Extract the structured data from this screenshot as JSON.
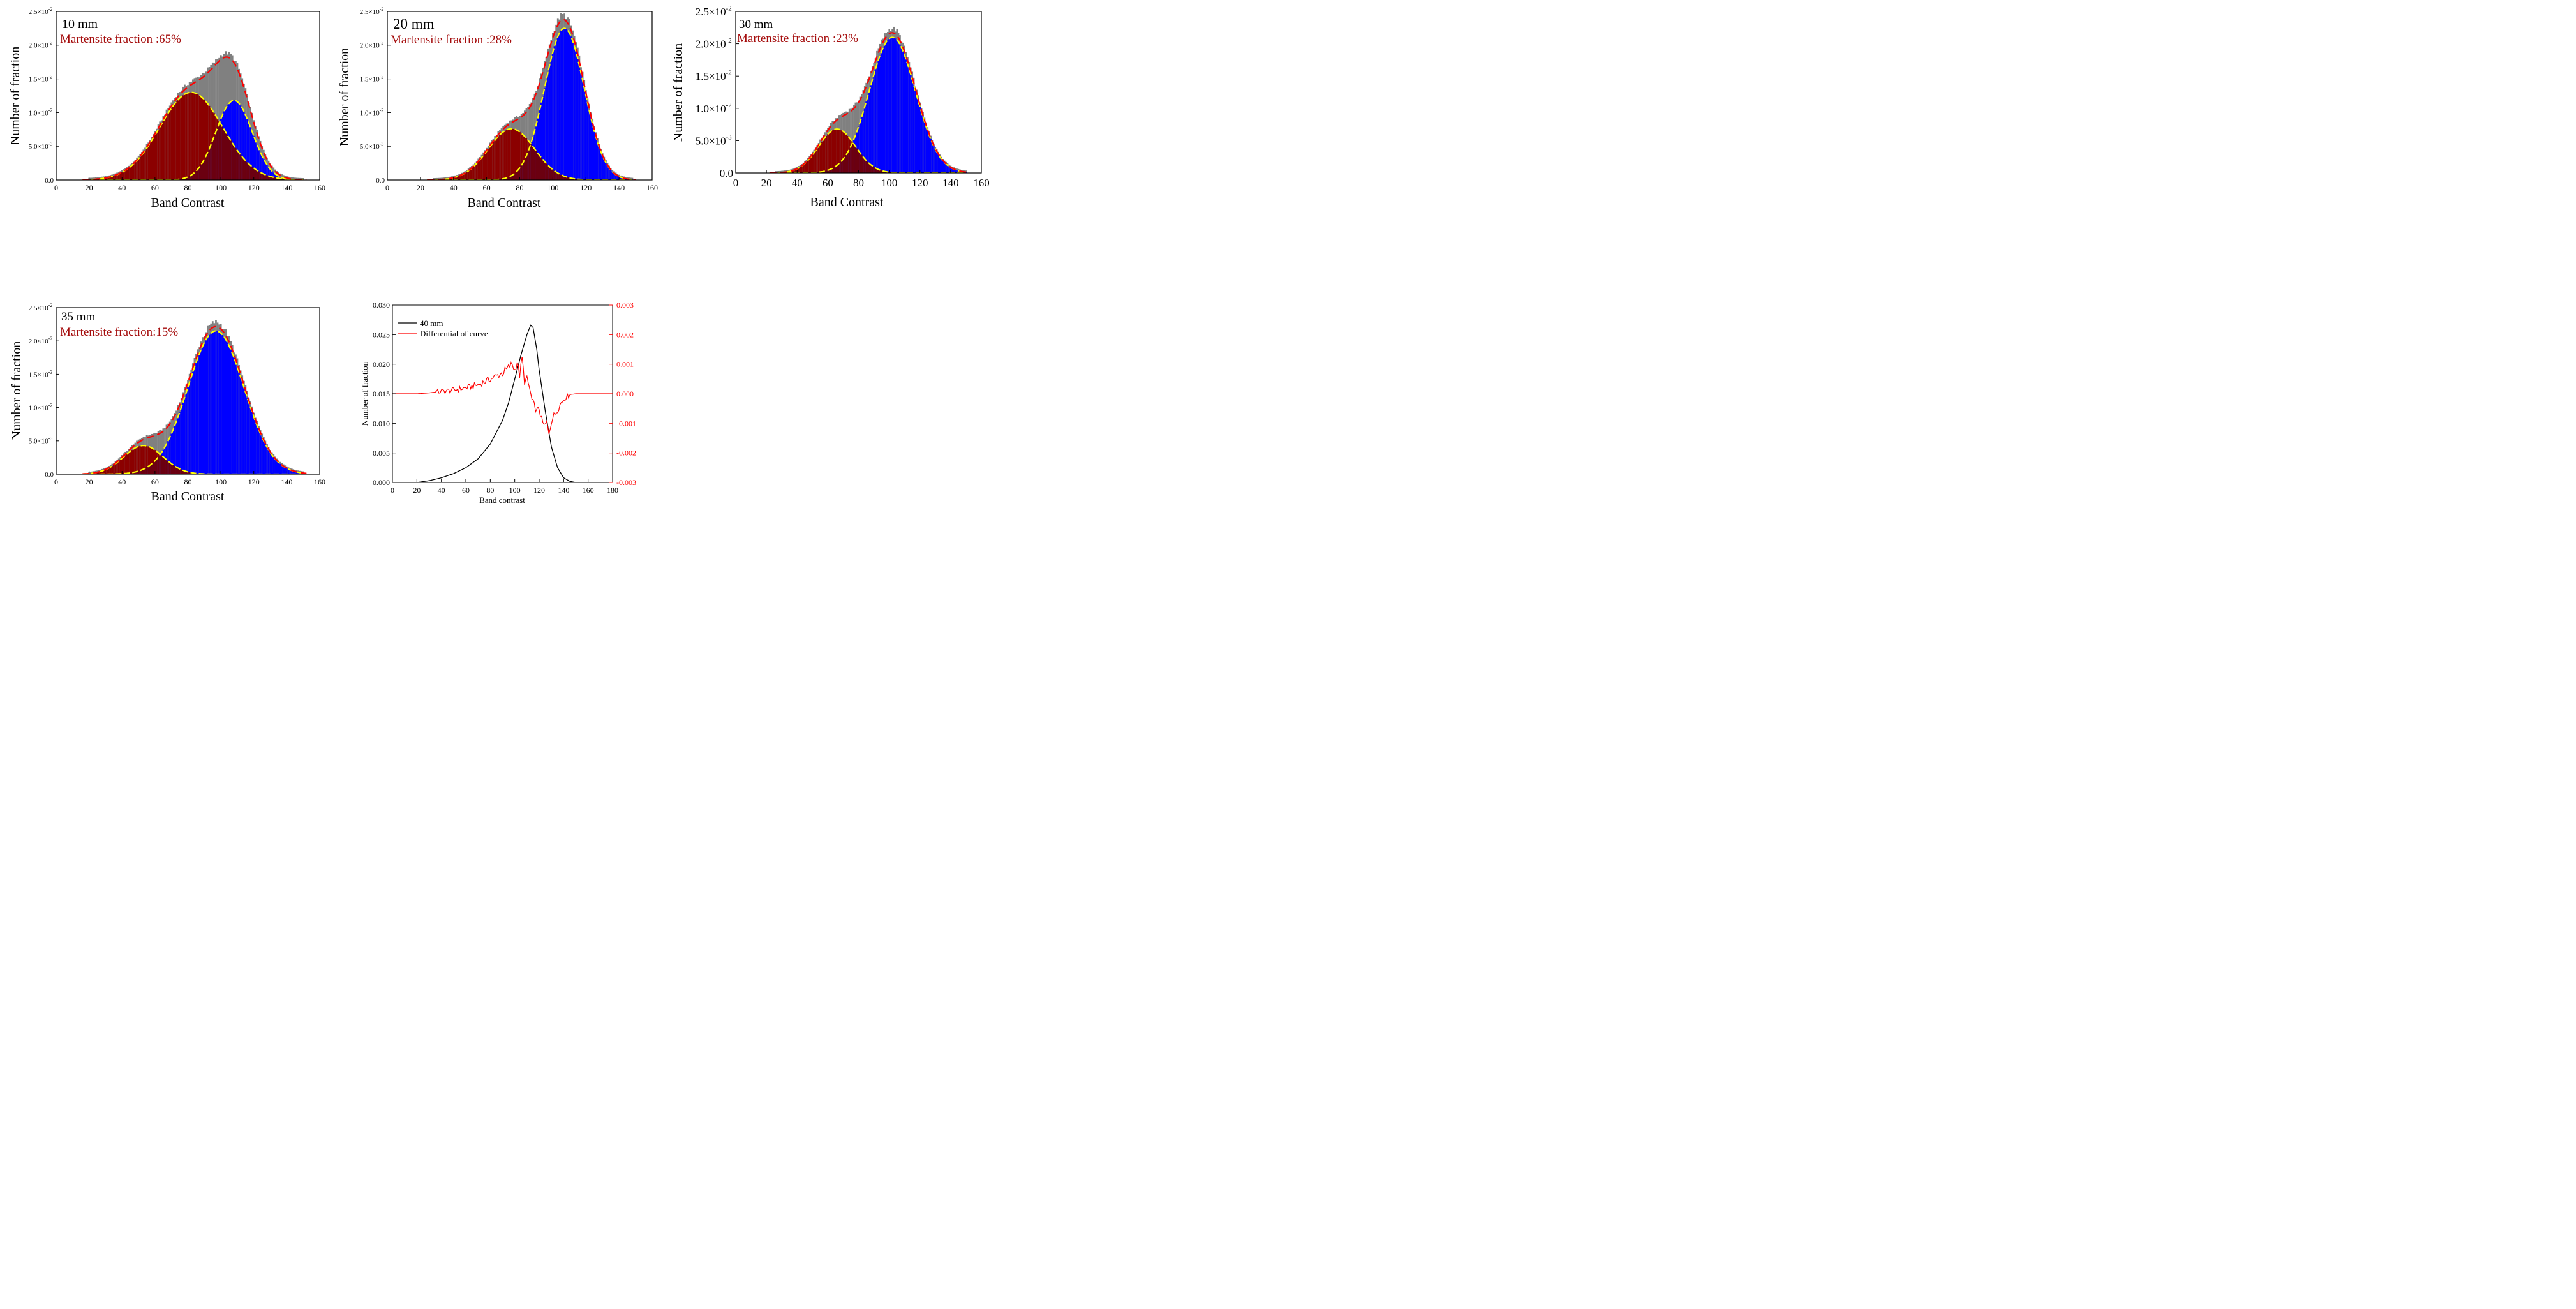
{
  "colors": {
    "martensite": "#8b0000",
    "overlap": "#6b0010",
    "ferrite": "#0000ff",
    "histogram": "#808080",
    "fit_total": "#ff0000",
    "fit_component": "#ffff00",
    "curve": "#000000",
    "differential": "#ff0000",
    "label_red": "#a50d0d"
  },
  "chart_data": [
    {
      "id": "p10",
      "type": "bar",
      "panel_label": "10 mm",
      "fraction_text": "Martensite fraction :65%",
      "xlabel": "Band Contrast",
      "ylabel": "Number of fraction",
      "xlim": [
        0,
        160
      ],
      "ylim": [
        0,
        0.025
      ],
      "xticks": [
        "0",
        "20",
        "40",
        "60",
        "80",
        "100",
        "120",
        "140",
        "160"
      ],
      "yticks": [
        {
          "mant": "0.0",
          "exp": ""
        },
        {
          "mant": "5.0×10",
          "exp": "-3"
        },
        {
          "mant": "1.0×10",
          "exp": "-2"
        },
        {
          "mant": "1.5×10",
          "exp": "-2"
        },
        {
          "mant": "2.0×10",
          "exp": "-2"
        },
        {
          "mant": "2.5×10",
          "exp": "-2"
        }
      ],
      "series": [
        {
          "name": "martensite peak",
          "mean": 82,
          "sd": 19,
          "amp": 0.013
        },
        {
          "name": "ferrite peak",
          "mean": 108,
          "sd": 11,
          "amp": 0.0118
        }
      ],
      "histogram_range": [
        20,
        150
      ]
    },
    {
      "id": "p20",
      "type": "bar",
      "panel_label": "20 mm",
      "fraction_text": "Martensite fraction :28%",
      "xlabel": "Band Contrast",
      "ylabel": "Number of fraction",
      "xlim": [
        0,
        160
      ],
      "ylim": [
        0,
        0.025
      ],
      "xticks": [
        "0",
        "20",
        "40",
        "60",
        "80",
        "100",
        "120",
        "140",
        "160"
      ],
      "yticks": [
        {
          "mant": "0.0",
          "exp": ""
        },
        {
          "mant": "5.0×10",
          "exp": "-3"
        },
        {
          "mant": "1.0×10",
          "exp": "-2"
        },
        {
          "mant": "1.5×10",
          "exp": "-2"
        },
        {
          "mant": "2.0×10",
          "exp": "-2"
        },
        {
          "mant": "2.5×10",
          "exp": "-2"
        }
      ],
      "series": [
        {
          "name": "martensite peak",
          "mean": 75,
          "sd": 14,
          "amp": 0.0076
        },
        {
          "name": "ferrite peak",
          "mean": 107,
          "sd": 12,
          "amp": 0.0225
        }
      ],
      "histogram_range": [
        28,
        148
      ]
    },
    {
      "id": "p30",
      "type": "bar",
      "panel_label": "30 mm",
      "fraction_text": "Martensite fraction :23%",
      "xlabel": "Band Contrast",
      "ylabel": "Number of fraction",
      "xlim": [
        0,
        160
      ],
      "ylim": [
        0,
        0.025
      ],
      "xticks": [
        "0",
        "20",
        "40",
        "60",
        "80",
        "100",
        "120",
        "140",
        "160"
      ],
      "yticks": [
        {
          "mant": "0.0",
          "exp": ""
        },
        {
          "mant": "5.0×10",
          "exp": "-3"
        },
        {
          "mant": "1.0×10",
          "exp": "-2"
        },
        {
          "mant": "1.5×10",
          "exp": "-2"
        },
        {
          "mant": "2.0×10",
          "exp": "-2"
        },
        {
          "mant": "2.5×10",
          "exp": "-2"
        }
      ],
      "series": [
        {
          "name": "martensite peak",
          "mean": 66,
          "sd": 12,
          "amp": 0.0068
        },
        {
          "name": "ferrite peak",
          "mean": 102,
          "sd": 15,
          "amp": 0.021
        }
      ],
      "histogram_range": [
        26,
        150
      ]
    },
    {
      "id": "p35",
      "type": "bar",
      "panel_label": "35 mm",
      "fraction_text": "Martensite fraction:15%",
      "xlabel": "Band Contrast",
      "ylabel": "Number of fraction",
      "xlim": [
        0,
        160
      ],
      "ylim": [
        0,
        0.025
      ],
      "xticks": [
        "0",
        "20",
        "40",
        "60",
        "80",
        "100",
        "120",
        "140",
        "160"
      ],
      "yticks": [
        {
          "mant": "0.0",
          "exp": ""
        },
        {
          "mant": "5.0×10",
          "exp": "-3"
        },
        {
          "mant": "1.0×10",
          "exp": "-2"
        },
        {
          "mant": "1.5×10",
          "exp": "-2"
        },
        {
          "mant": "2.0×10",
          "exp": "-2"
        },
        {
          "mant": "2.5×10",
          "exp": "-2"
        }
      ],
      "series": [
        {
          "name": "martensite peak",
          "mean": 53,
          "sd": 12,
          "amp": 0.0043
        },
        {
          "name": "ferrite peak",
          "mean": 97,
          "sd": 17,
          "amp": 0.0215
        }
      ],
      "histogram_range": [
        20,
        150
      ]
    },
    {
      "id": "p40",
      "type": "line",
      "xlabel": "Band contrast",
      "ylabel": "Number of fraction",
      "xlim": [
        0,
        180
      ],
      "ylim": [
        0,
        0.03
      ],
      "y2lim": [
        -0.003,
        0.003
      ],
      "xticks": [
        "0",
        "20",
        "40",
        "60",
        "80",
        "100",
        "120",
        "140",
        "160",
        "180"
      ],
      "yticks": [
        "0.000",
        "0.005",
        "0.010",
        "0.015",
        "0.020",
        "0.025",
        "0.030"
      ],
      "y2ticks": [
        "-0.003",
        "-0.002",
        "-0.001",
        "0.000",
        "0.001",
        "0.002",
        "0.003"
      ],
      "legend": [
        "40 mm",
        "Differential of curve"
      ],
      "series": [
        {
          "name": "40 mm",
          "x": [
            0,
            20,
            30,
            40,
            50,
            60,
            70,
            80,
            90,
            95,
            100,
            105,
            110,
            113,
            115,
            118,
            120,
            125,
            130,
            135,
            140,
            145,
            150,
            155,
            160
          ],
          "values": [
            0,
            0,
            0.0003,
            0.0008,
            0.0015,
            0.0025,
            0.004,
            0.0065,
            0.0105,
            0.0135,
            0.0175,
            0.0215,
            0.025,
            0.0266,
            0.0262,
            0.0225,
            0.019,
            0.012,
            0.006,
            0.0025,
            0.0008,
            0.0002,
            0,
            0,
            0
          ]
        },
        {
          "name": "Differential of curve",
          "x": [
            0,
            20,
            30,
            40,
            50,
            60,
            70,
            80,
            85,
            90,
            95,
            98,
            100,
            102,
            104,
            106,
            108,
            110,
            112,
            114,
            116,
            118,
            120,
            122,
            124,
            126,
            128,
            130,
            134,
            138,
            142,
            146,
            150,
            155,
            160,
            170,
            180
          ],
          "values": [
            0,
            0,
            3e-05,
            8e-05,
            0.00012,
            0.0002,
            0.0003,
            0.0005,
            0.0006,
            0.0007,
            0.0009,
            0.001,
            0.0008,
            0.0011,
            0.0006,
            0.0012,
            0.0004,
            0.0005,
            0.0002,
            -0.0002,
            -0.0004,
            -0.0006,
            -0.0005,
            -0.0009,
            -0.0011,
            -0.001,
            -0.0013,
            -0.0009,
            -0.0006,
            -0.0003,
            -0.0001,
            -2e-05,
            0,
            0,
            0,
            0,
            0
          ]
        }
      ]
    }
  ]
}
